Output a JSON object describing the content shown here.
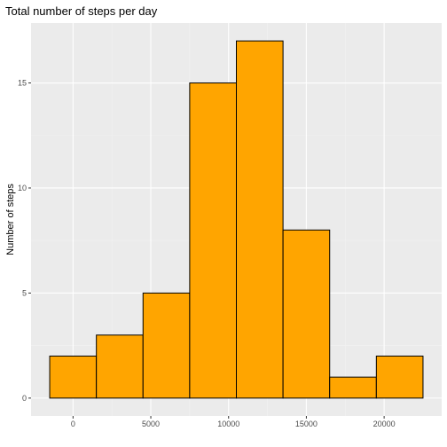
{
  "chart_data": {
    "type": "bar",
    "title": "Total number of steps per day",
    "xlabel": "",
    "ylabel": "Number of steps",
    "bins": [
      {
        "from": -1500,
        "to": 1500,
        "count": 2
      },
      {
        "from": 1500,
        "to": 4500,
        "count": 3
      },
      {
        "from": 4500,
        "to": 7500,
        "count": 5
      },
      {
        "from": 7500,
        "to": 10500,
        "count": 15
      },
      {
        "from": 10500,
        "to": 13500,
        "count": 17
      },
      {
        "from": 13500,
        "to": 16500,
        "count": 8
      },
      {
        "from": 16500,
        "to": 19500,
        "count": 1
      },
      {
        "from": 19500,
        "to": 22500,
        "count": 2
      }
    ],
    "xlim": [
      -2700,
      23700
    ],
    "ylim": [
      -0.85,
      17.85
    ],
    "x_ticks": [
      0,
      5000,
      10000,
      15000,
      20000
    ],
    "x_tick_labels": [
      "0",
      "5000",
      "10000",
      "15000",
      "20000"
    ],
    "y_ticks": [
      0,
      5,
      10,
      15
    ],
    "y_tick_labels": [
      "0",
      "5",
      "10",
      "15"
    ],
    "grid": true,
    "colors": {
      "bar_fill": "#FFA500",
      "bar_stroke": "#000000",
      "panel_background": "#EBEBEB",
      "grid_major": "#FFFFFF",
      "grid_minor": "#F2F2F2",
      "tick_text": "#4D4D4D"
    }
  }
}
